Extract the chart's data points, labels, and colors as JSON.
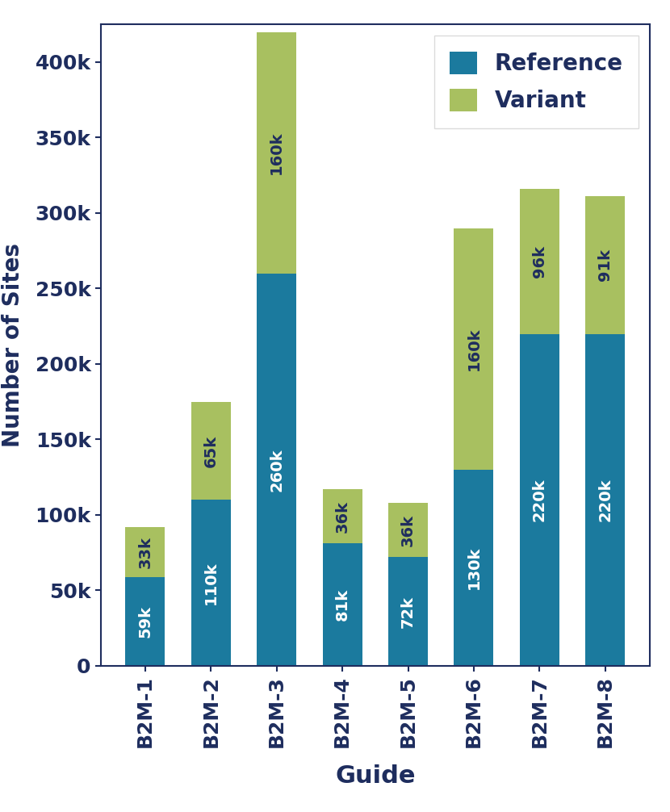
{
  "categories": [
    "B2M-1",
    "B2M-2",
    "B2M-3",
    "B2M-4",
    "B2M-5",
    "B2M-6",
    "B2M-7",
    "B2M-8"
  ],
  "reference_values": [
    59000,
    110000,
    260000,
    81000,
    72000,
    130000,
    220000,
    220000
  ],
  "variant_values": [
    33000,
    65000,
    160000,
    36000,
    36000,
    160000,
    96000,
    91000
  ],
  "reference_labels": [
    "59k",
    "110k",
    "260k",
    "81k",
    "72k",
    "130k",
    "220k",
    "220k"
  ],
  "variant_labels": [
    "33k",
    "65k",
    "160k",
    "36k",
    "36k",
    "160k",
    "96k",
    "91k"
  ],
  "reference_color": "#1b7a9e",
  "variant_color": "#a8c060",
  "ylabel": "Number of Sites",
  "xlabel": "Guide",
  "ylim": [
    0,
    425000
  ],
  "yticks": [
    0,
    50000,
    100000,
    150000,
    200000,
    250000,
    300000,
    350000,
    400000
  ],
  "legend_labels": [
    "Reference",
    "Variant"
  ],
  "axis_color": "#1e2d5e",
  "label_fontsize": 20,
  "xlabel_fontsize": 22,
  "tick_fontsize": 18,
  "bar_label_fontsize": 14,
  "legend_fontsize": 20,
  "figsize": [
    8.3,
    10.06
  ],
  "dpi": 100
}
